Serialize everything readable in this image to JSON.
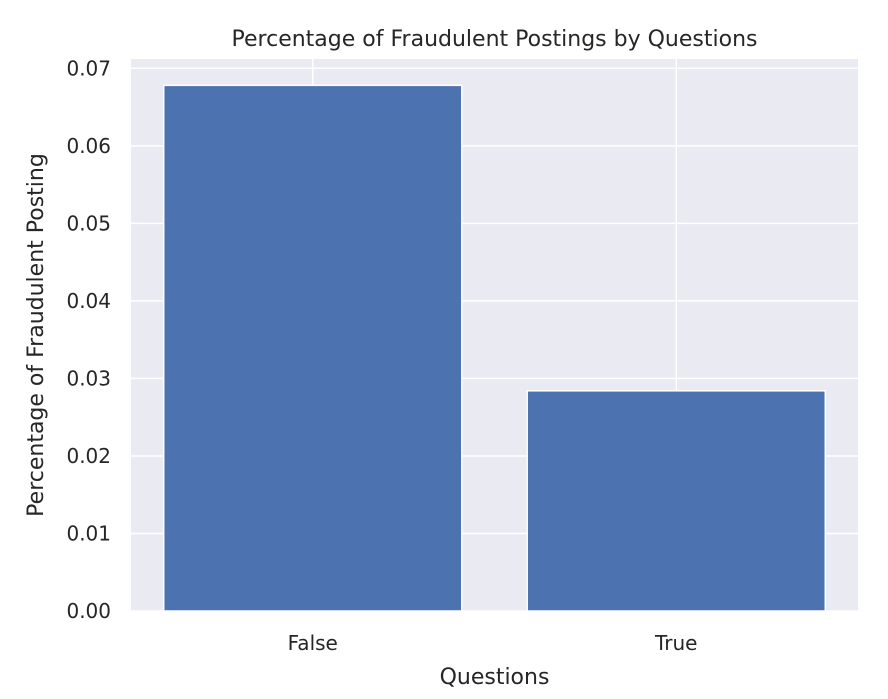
{
  "chart_data": {
    "type": "bar",
    "title": "Percentage of Fraudulent Postings by Questions",
    "xlabel": "Questions",
    "ylabel": "Percentage of Fraudulent Posting",
    "categories": [
      "False",
      "True"
    ],
    "values": [
      0.0678,
      0.0284
    ],
    "ylim": [
      0,
      0.0712
    ],
    "yticks": [
      0,
      0.01,
      0.02,
      0.03,
      0.04,
      0.05,
      0.06,
      0.07
    ],
    "ytick_labels": [
      "0.00",
      "0.01",
      "0.02",
      "0.03",
      "0.04",
      "0.05",
      "0.06",
      "0.07"
    ],
    "grid": true,
    "legend": "none",
    "colors": {
      "bar": "#4C72B0",
      "plot_background": "#EAEAF2",
      "grid": "#FFFFFF",
      "text": "#262626"
    }
  }
}
